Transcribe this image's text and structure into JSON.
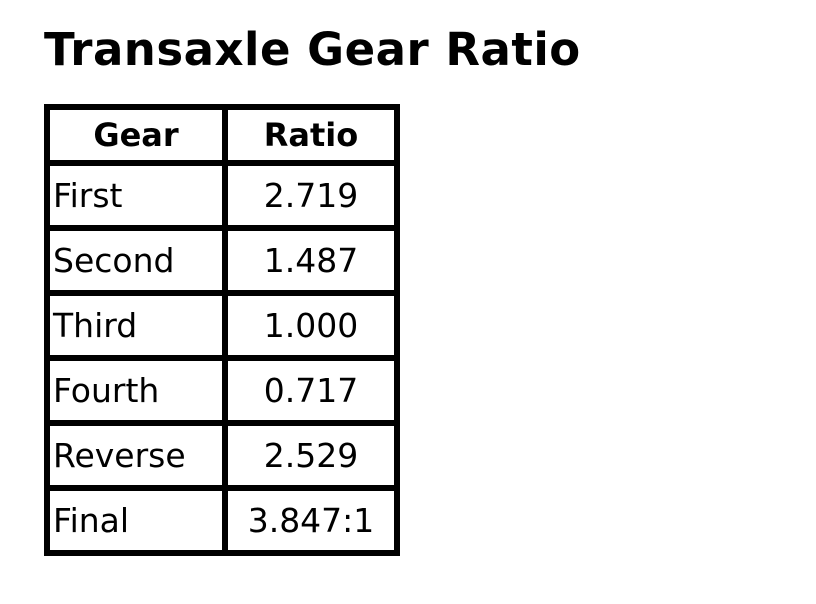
{
  "title": "Transaxle Gear Ratio",
  "table": {
    "headers": [
      "Gear",
      "Ratio"
    ],
    "rows": [
      {
        "gear": "First",
        "ratio": "2.719"
      },
      {
        "gear": "Second",
        "ratio": "1.487"
      },
      {
        "gear": "Third",
        "ratio": "1.000"
      },
      {
        "gear": "Fourth",
        "ratio": "0.717"
      },
      {
        "gear": "Reverse",
        "ratio": "2.529"
      },
      {
        "gear": "Final",
        "ratio": "3.847:1"
      }
    ]
  }
}
